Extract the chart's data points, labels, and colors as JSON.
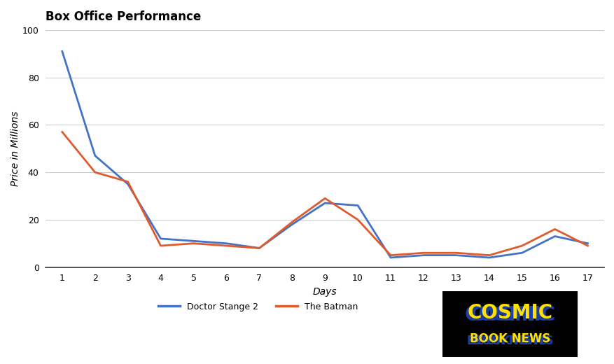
{
  "title": "Box Office Performance",
  "xlabel": "Days",
  "ylabel": "Price in Millions",
  "days": [
    1,
    2,
    3,
    4,
    5,
    6,
    7,
    8,
    9,
    10,
    11,
    12,
    13,
    14,
    15,
    16,
    17
  ],
  "doctor_strange": [
    91,
    47,
    35,
    12,
    11,
    10,
    8,
    18,
    27,
    26,
    4,
    5,
    5,
    4,
    6,
    13,
    10
  ],
  "the_batman": [
    57,
    40,
    36,
    9,
    10,
    9,
    8,
    19,
    29,
    20,
    5,
    6,
    6,
    5,
    9,
    16,
    9
  ],
  "ds_color": "#4472c4",
  "batman_color": "#e05a2b",
  "bg_color": "#ffffff",
  "grid_color": "#cccccc",
  "ylim": [
    0,
    100
  ],
  "yticks": [
    0,
    20,
    40,
    60,
    80,
    100
  ],
  "title_fontsize": 12,
  "axis_label_fontsize": 10,
  "legend_label_ds": "Doctor Stange 2",
  "legend_label_batman": "The Batman",
  "logo_text_top": "COSMIC",
  "logo_text_bottom": "BOOK NEWS",
  "logo_color_yellow": "#FFE000",
  "logo_color_blue_shadow": "#1a3fa0",
  "logo_bg": "#000000"
}
